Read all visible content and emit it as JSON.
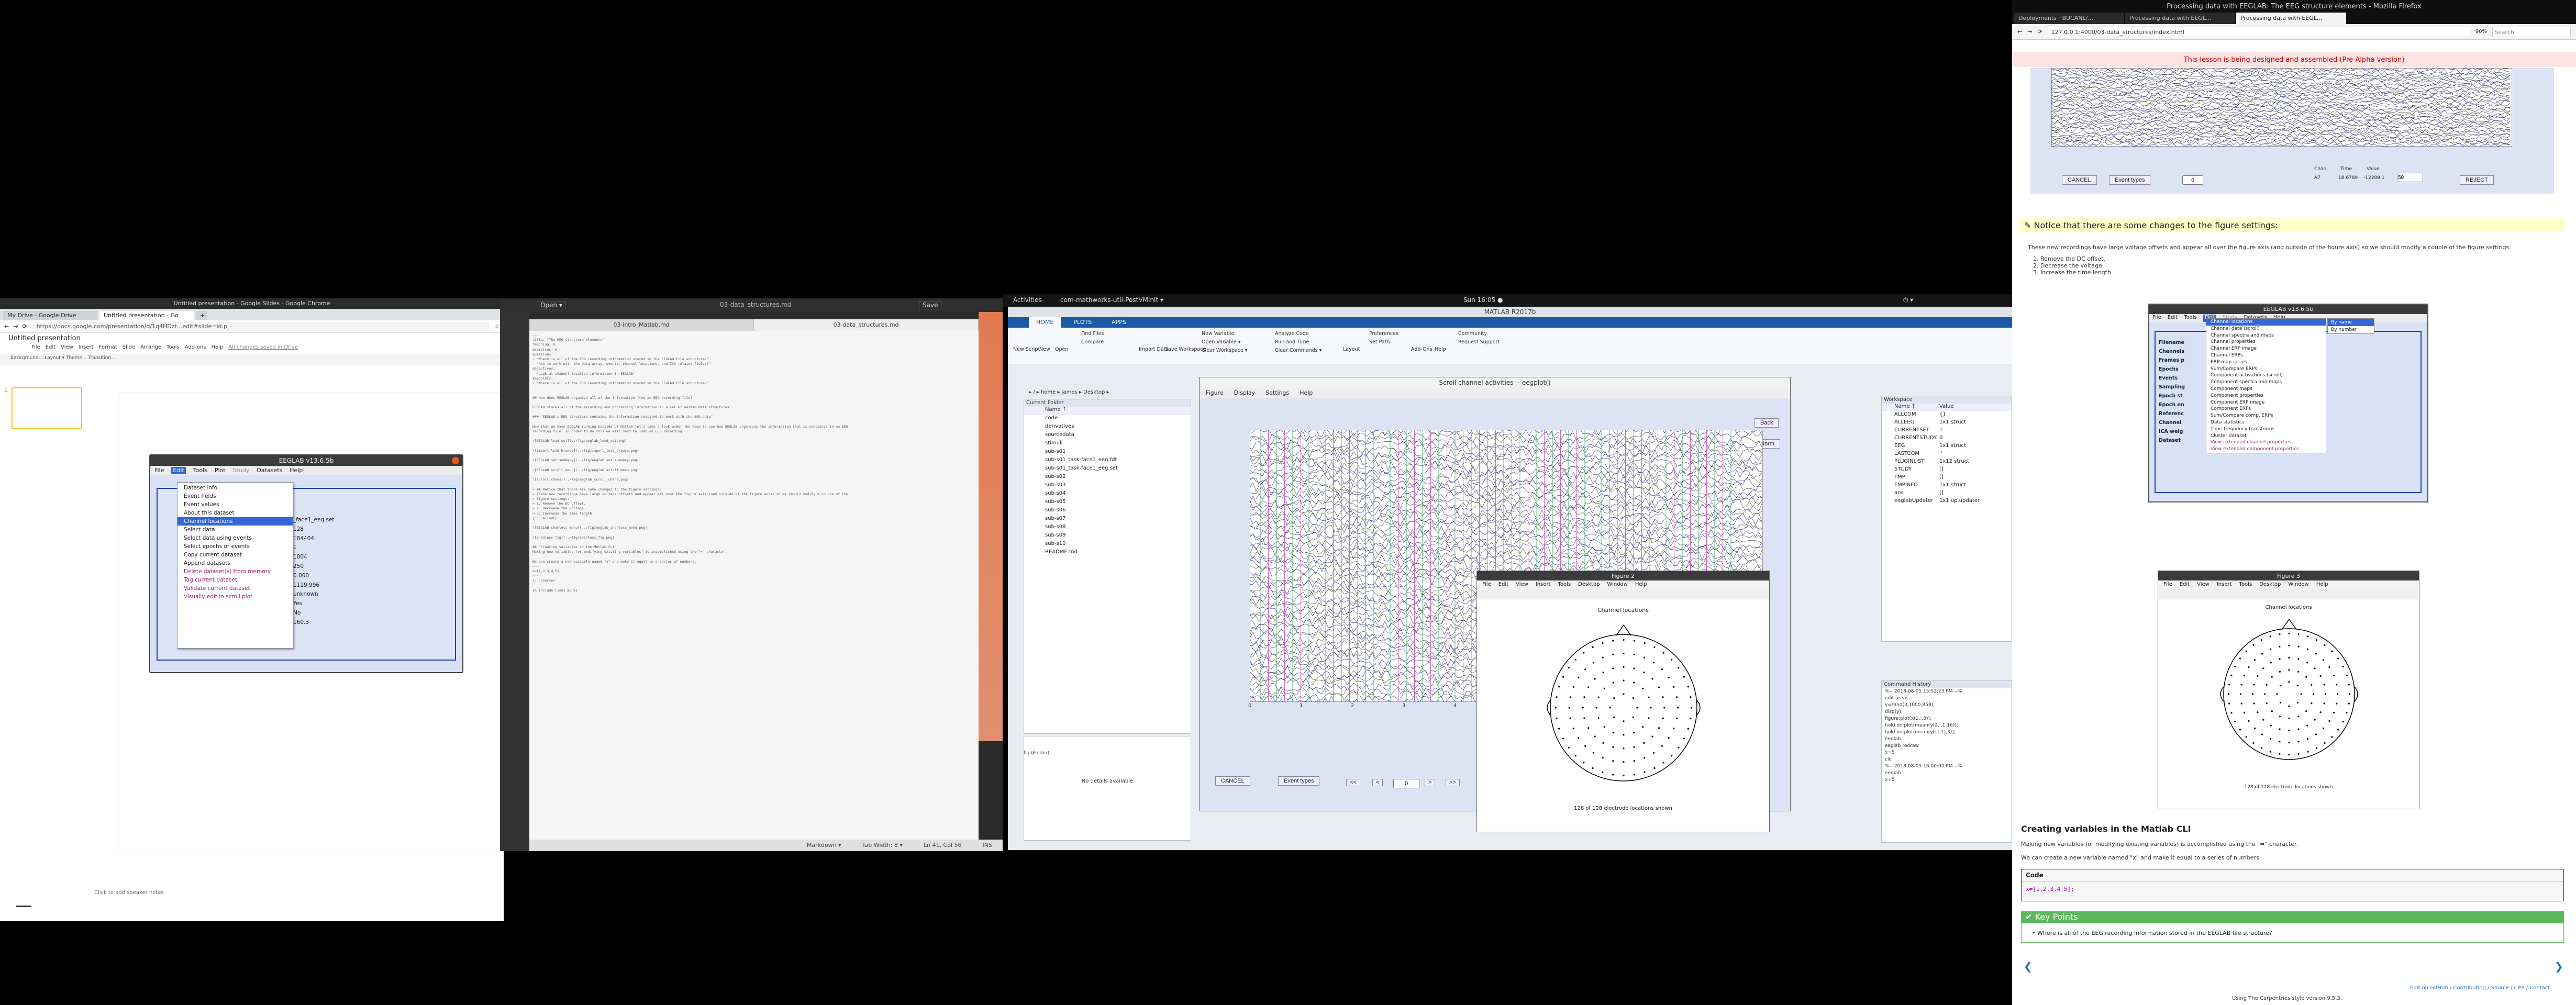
{
  "chrome": {
    "tabs": [
      "My Drive - Google Drive",
      "Untitled presentation - Go",
      ""
    ],
    "url": "https://docs.google.com/presentation/d/1q4HDzt...edit#slide=id.p",
    "window_title": "Untitled presentation - Google Slides - Google Chrome",
    "doc_title": "Untitled presentation",
    "menu": [
      "File",
      "Edit",
      "View",
      "Insert",
      "Format",
      "Slide",
      "Arrange",
      "Tools",
      "Add-ons",
      "Help",
      "All changes saved in Drive"
    ],
    "toolbar_text": "Background...  Layout ▾  Theme...  Transition...",
    "thumb_number": "1",
    "notes": "Click to add speaker notes"
  },
  "eeglab1": {
    "title": "EEGLAB v13.6.5b",
    "menu": [
      "File",
      "Edit",
      "Tools",
      "Plot",
      "Study",
      "Datasets",
      "Help"
    ],
    "dropdown": [
      "Dataset info",
      "Event fields",
      "Event values",
      "About this dataset",
      "Channel locations",
      "Select data",
      "Select data using events",
      "Select epochs or events",
      "Copy current dataset",
      "Append datasets",
      "Delete dataset(s) from memory",
      "Tag current dataset",
      "Validate current dataset",
      "Visually edit in scroll plot"
    ],
    "values": [
      "_face1_eeg.set",
      "128",
      "184404",
      "1",
      "1004",
      "250",
      "0.000",
      "1119.996",
      "unknown",
      "Yes",
      "No",
      "160.3"
    ]
  },
  "editor": {
    "header_open": "Open ▾",
    "header_title": "03-data_structures.md",
    "header_save": "Save",
    "tabs": [
      "03-intro_Matlab.md",
      "03-data_structures.md"
    ],
    "active_tab": "03-data_structures.md",
    "status_mode": "Markdown ▾",
    "status_tab": "Tab Width: 8 ▾",
    "status_pos": "Ln 41, Col 56",
    "status_ins": "INS",
    "doc_lines": [
      "---",
      "title: \"The EEG structure elements\"",
      "teaching: 0",
      "exercises: 0",
      "questions:",
      "- \"Where is all of the EEG recording information stored in the EEGLAB file structure?\"",
      "- \"How to work with the data array, events, channel locations, and ICA related fields?\"",
      "objectives:",
      "- \"Look at channel location information in EEGLAB\"",
      "keypoints:",
      "- \"Where is all of the EEG recording information stored in the EEGLAB file structure?\"",
      "---",
      "",
      "## How does EEGLAB organize all of the information from an EEG recording file?",
      "",
      "EEGLAB stores all of the recording and processing information in a set of nested data structures.",
      "",
      "### \"EEGLAB's EEG structure contains the information required to work with the EEG data\"",
      "",
      "Now that we have EEGLAB running outside of Matlab let's take a look under the hood to see how EEGLAB organizes the information that is contained in an EEG",
      "recording file. In order to do this we will need to load an EEG recording.",
      "",
      "![EEGLAB load set](../fig/eeglab_load_set.png)",
      "",
      "![import load browse](../fig/import_load_browse.png)",
      "",
      "![EEGLAB set summary](../fig/eeglab_set_summary.png)",
      "",
      "![EEGLAB scroll menu](../fig/eeglab_scroll_menu.png)",
      "",
      "![scroll chans](../fig/eeglab_scroll_chans.png)",
      "",
      "> ## Notice that there are some changes to the figure settings:",
      "> These new recordings have large voltage offsets and appear all over the figure axis (and outside of the figure axis) so we should modify a couple of the",
      "> figure settings:",
      "> 1. Remove the DC offset.",
      "> 2. Decrease the voltage",
      "> 3. Increase the time length",
      "{: .callout}",
      "",
      "![EEGLAB chanlocs menu](../fig/eeglab_chanlocs_menu.png)",
      "",
      "![chanlocs fig](../fig/chanlocs_fig.png)",
      "",
      "## \"Creating variables in the Matlab CLI\"",
      "Making new variables (or modifying existing variables) is accomplished using the \"=\" character.",
      "",
      "We can create a new variable named \"x\" and make it equal to a series of numbers.",
      "~~~",
      "x=[1,2,3,4,5];",
      "~~~",
      "{: .source}",
      "",
      "{% include links.md %}"
    ]
  },
  "ubuntu": {
    "activities": "Activities",
    "app": "com-mathworks-util-PostVMInit ▾",
    "clock": "Sun 16:05 ●"
  },
  "matlab": {
    "title": "MATLAB R2017b",
    "ribbon_tabs": [
      "HOME",
      "PLOTS",
      "APPS"
    ],
    "ribbon_items": [
      "New Script",
      "New",
      "Open",
      "Find Files",
      "Compare",
      "Import Data",
      "Save Workspace",
      "New Variable",
      "Open Variable ▾",
      "Clear Workspace ▾",
      "Analyze Code",
      "Run and Time",
      "Clear Commands ▾",
      "Layout",
      "Preferences",
      "Set Path",
      "Add-Ons",
      "Help",
      "Community",
      "Request Support"
    ],
    "path": "▸ / ▸ home ▸ james ▸ Desktop ▸",
    "current_folder": "Current Folder",
    "folder_name": "Name ↑",
    "files": [
      "code",
      "derivatives",
      "sourcedata",
      "stimuli",
      "sub-s01",
      "sub-s01_task-face1_eeg.fdt",
      "sub-s01_task-face1_eeg.set",
      "sub-s02",
      "sub-s03",
      "sub-s04",
      "sub-s05",
      "sub-s06",
      "sub-s07",
      "sub-s08",
      "sub-s09",
      "sub-s10",
      "README.md"
    ],
    "no_details": "No details available",
    "workspace": "Workspace",
    "ws_headers": [
      "Name ↑",
      "Value"
    ],
    "ws_rows": [
      [
        "ALLCOM",
        "{}"
      ],
      [
        "ALLEEG",
        "1x1 struct"
      ],
      [
        "CURRENTSET",
        "1"
      ],
      [
        "CURRENTSTUDY",
        "0"
      ],
      [
        "EEG",
        "1x1 struct"
      ],
      [
        "LASTCOM",
        "''"
      ],
      [
        "PLUGINLIST",
        "1x12 struct"
      ],
      [
        "STUDY",
        "[]"
      ],
      [
        "TMP",
        "[]"
      ],
      [
        "TMPINFO",
        "1x1 struct"
      ],
      [
        "ans",
        "[]"
      ],
      [
        "eeglabUpdater",
        "1x1 up.updater"
      ]
    ],
    "cmd_history": "Command History",
    "history": [
      "%-- 2018-08-05 15:52:23 PM --%",
      "edit areas",
      "y=rand(3,1000,858);",
      "disp(y);",
      "figure;plot(x(1,:,8));",
      "hold on;plot(mean(y(2,:,1:16));",
      "hold on;plot(mean(y(:,:,1),3));",
      "eeglab",
      "eeglab redraw",
      "x=5",
      "clc",
      "%-- 2018-08-05 16:00:00 PM --%",
      "eeglab",
      "x=5"
    ],
    "cmd_label": "fig (Folder)"
  },
  "scroll": {
    "title": "Scroll channel activities -- eegplot()",
    "menu": [
      "Figure",
      "Display",
      "Settings",
      "Help"
    ],
    "buttons": {
      "back": "Back",
      "norm": "Norm",
      "cancel": "CANCEL",
      "events": "Event types"
    },
    "page_value": "0",
    "xticks": [
      "0",
      "1",
      "2",
      "3",
      "4",
      "5",
      "6",
      "7",
      "8",
      "9",
      "10"
    ],
    "nav": [
      "<<",
      "<",
      ">",
      ">>"
    ]
  },
  "fig2": {
    "title": "Figure 2",
    "menu": [
      "File",
      "Edit",
      "View",
      "Insert",
      "Tools",
      "Desktop",
      "Window",
      "Help"
    ],
    "plot_title": "Channel locations",
    "footer": "128 of 128 electrode locations shown"
  },
  "firefox": {
    "window_title": "Processing data with EEGLAB: The EEG structure elements - Mozilla Firefox",
    "tabs": [
      "Deployments · BUCANL/...",
      "Processing data with EEGL...",
      "Processing data with EEGL..."
    ],
    "url": "127.0.0.1:4000/03-data_structures/index.html",
    "zoom": "90%",
    "search": "Search",
    "warning": "This lesson is being designed and assembled (Pre-Alpha version)",
    "top_fig": {
      "chan": "Chan.",
      "time": "Time",
      "value": "Value",
      "chan_val": "A7",
      "time_val": "18.6789",
      "value_val": "-12289.1",
      "cancel": "CANCEL",
      "event_types": "Event types",
      "reject": "REJECT",
      "page": "0",
      "field": "50"
    },
    "notice_title": "✎ Notice that there are some changes to the figure settings:",
    "notice_body": "These new recordings have large voltage offsets and appear all over the figure axis (and outside of the figure axis) so we should modify a couple of the figure settings:",
    "notice_list": [
      "1. Remove the DC offset.",
      "2. Decrease the voltage",
      "3. Increase the time length"
    ],
    "eeglab2": {
      "title": "EEGLAB v13.6.5b",
      "menu": [
        "File",
        "Edit",
        "Tools",
        "Plot",
        "Study",
        "Datasets",
        "Help"
      ],
      "submenu": [
        "Channel locations",
        "Channel data (scroll)",
        "Channel spectra and maps",
        "Channel properties",
        "Channel ERP image",
        "Channel ERPs",
        "ERP map series",
        "Sum/Compare ERPs",
        "Component activations (scroll)",
        "Component spectra and maps",
        "Component maps",
        "Component properties",
        "Component ERP image",
        "Component ERPs",
        "Sum/Compare comp. ERPs",
        "Data statistics",
        "Time-frequency transforms",
        "Cluster dataset",
        "View extended channel properties",
        "View extended component properties"
      ],
      "subsub": [
        "By name",
        "By number"
      ],
      "labels": [
        "Filename",
        "Channels",
        "Frames p",
        "Epochs",
        "Events",
        "Sampling",
        "Epoch st",
        "Epoch en",
        "Referenc",
        "Channel",
        "ICA weig",
        "Dataset"
      ]
    },
    "fig3": {
      "title": "Figure 3",
      "menu": [
        "File",
        "Edit",
        "View",
        "Insert",
        "Tools",
        "Desktop",
        "Window",
        "Help"
      ],
      "plot_title": "Channel locations",
      "footer": "128 of 128 electrode locations shown"
    },
    "section_title": "Creating variables in the Matlab CLI",
    "section_p1": "Making new variables (or modifying existing variables) is accomplished using the \"=\" character.",
    "section_p2": "We can create a new variable named \"x\" and make it equal to a series of numbers.",
    "code_label": "Code",
    "code": "x=[1,2,3,4,5];",
    "keypoints_title": "✔ Key Points",
    "keypoints": [
      "Where is all of the EEG recording information stored in the EEGLAB file structure?"
    ],
    "prev": "❮",
    "next": "❯",
    "footer_links": "Edit on GitHub / Contributing / Source / Cite / Contact",
    "footer_using": "Using The Carpentries style version 9.5.3."
  },
  "colors": {
    "accent": "#3367d6",
    "matlab_blue": "#1c5aa8",
    "keypoints": "#5cb85c",
    "notice": "#ffffcc",
    "eeg_blue": "#1a3fa5"
  }
}
